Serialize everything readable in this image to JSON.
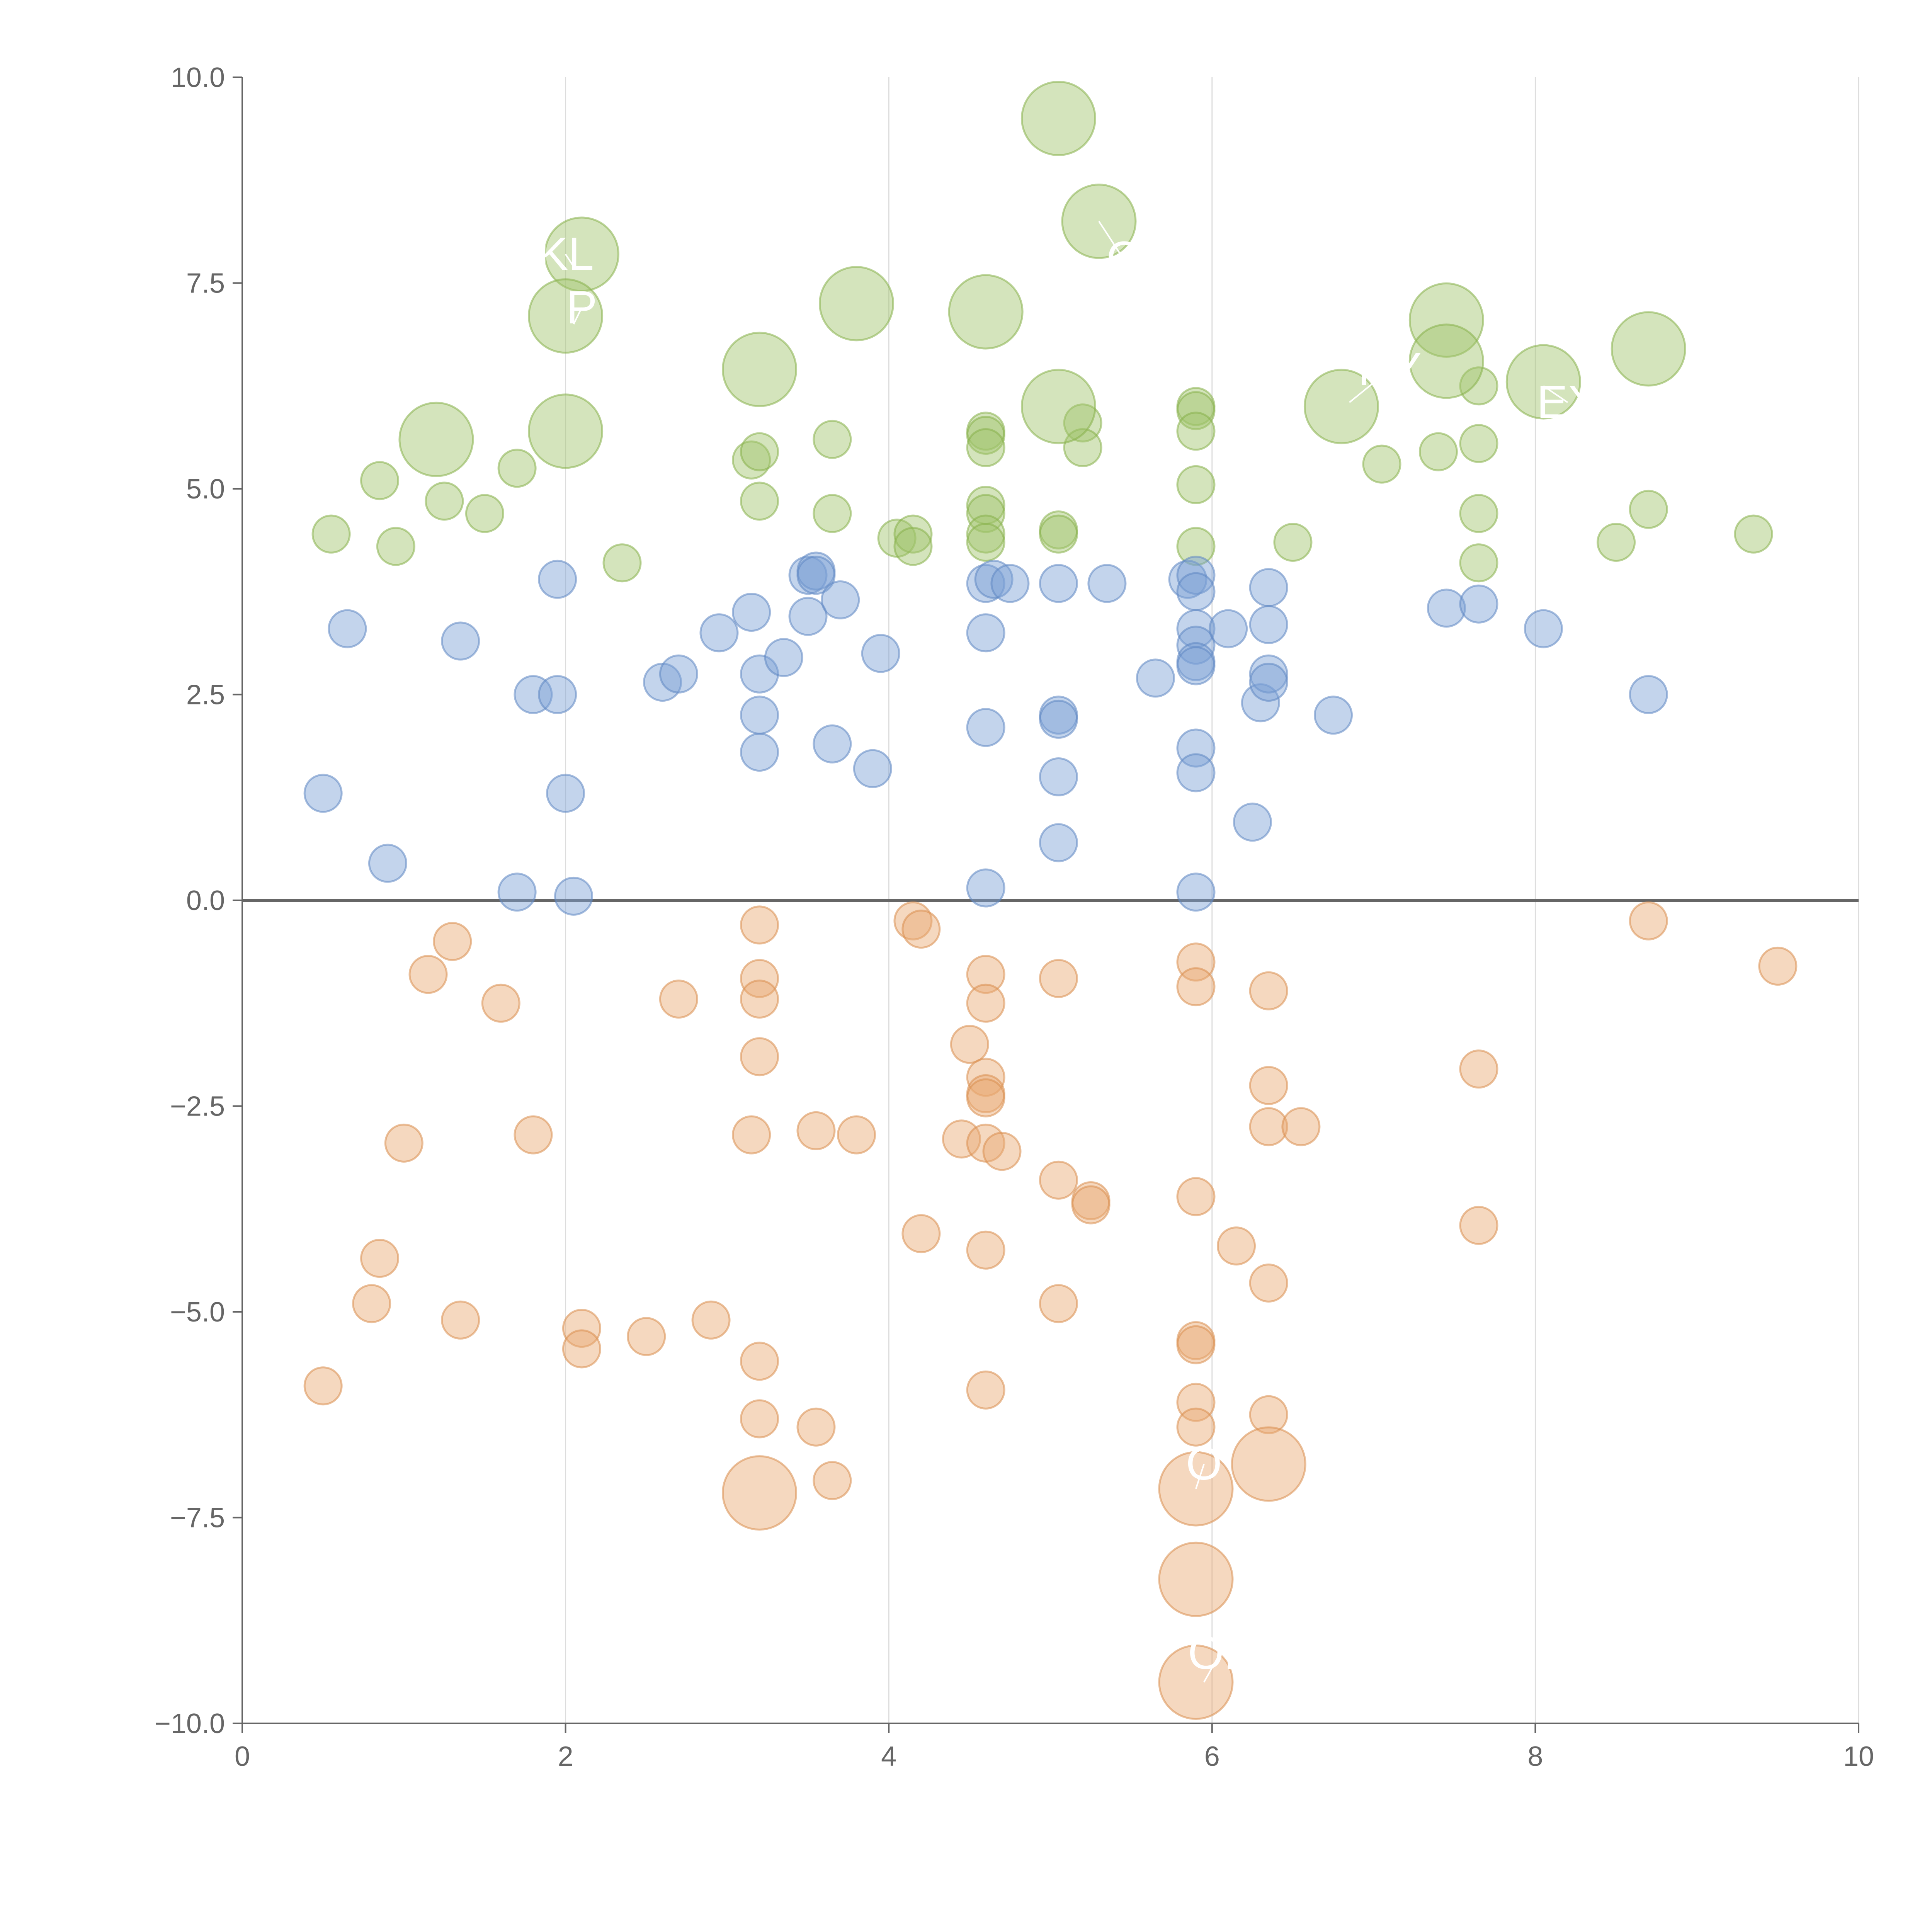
{
  "chart_data": {
    "type": "scatter",
    "title": "",
    "xlabel": "",
    "ylabel": "",
    "xlim": [
      0,
      10
    ],
    "ylim": [
      -10,
      10
    ],
    "x_ticks": [
      0,
      2,
      4,
      6,
      8,
      10
    ],
    "x_tick_labels": [
      "0",
      "2",
      "4",
      "6",
      "8",
      "10"
    ],
    "y_ticks": [
      10,
      7.5,
      5,
      2.5,
      0,
      -2.5,
      -5,
      -7.5,
      -10
    ],
    "y_tick_labels": [
      "10.0",
      "7.5",
      "5.0",
      "2.5",
      "0.0",
      "−2.5",
      "−5.0",
      "−7.5",
      "−10.0"
    ],
    "vertical_grid": true,
    "zero_line": true,
    "series": [
      {
        "name": "green",
        "color": "#9fc46a",
        "stroke": "#86b04a",
        "points": [
          [
            5.05,
            9.5,
            3
          ],
          [
            5.3,
            8.25,
            3
          ],
          [
            2.1,
            7.85,
            3
          ],
          [
            2.0,
            7.1,
            3
          ],
          [
            3.8,
            7.25,
            3
          ],
          [
            4.6,
            7.15,
            3
          ],
          [
            7.45,
            7.05,
            3
          ],
          [
            8.7,
            6.7,
            3
          ],
          [
            3.2,
            6.45,
            3
          ],
          [
            7.45,
            6.55,
            3
          ],
          [
            8.05,
            6.3,
            3
          ],
          [
            6.8,
            6.0,
            3
          ],
          [
            5.05,
            6.0,
            3
          ],
          [
            2.0,
            5.7,
            3
          ],
          [
            1.2,
            5.6,
            3
          ],
          [
            0.55,
            4.45,
            1
          ],
          [
            0.85,
            5.1,
            1
          ],
          [
            0.95,
            4.3,
            1
          ],
          [
            1.25,
            4.85,
            1
          ],
          [
            1.5,
            4.7,
            1
          ],
          [
            1.7,
            5.25,
            1
          ],
          [
            2.35,
            4.1,
            1
          ],
          [
            3.15,
            5.35,
            1
          ],
          [
            3.2,
            5.45,
            1
          ],
          [
            3.2,
            4.85,
            1
          ],
          [
            3.65,
            5.6,
            1
          ],
          [
            3.65,
            4.7,
            1
          ],
          [
            4.05,
            4.4,
            1
          ],
          [
            4.15,
            4.45,
            1
          ],
          [
            4.15,
            4.3,
            1
          ],
          [
            4.6,
            5.7,
            1
          ],
          [
            4.6,
            5.65,
            1
          ],
          [
            4.6,
            5.5,
            1
          ],
          [
            4.6,
            4.8,
            1
          ],
          [
            4.6,
            4.7,
            1
          ],
          [
            4.6,
            4.45,
            1
          ],
          [
            4.6,
            4.35,
            1
          ],
          [
            5.05,
            4.5,
            1
          ],
          [
            5.05,
            4.45,
            1
          ],
          [
            5.2,
            5.8,
            1
          ],
          [
            5.2,
            5.5,
            1
          ],
          [
            5.9,
            6.0,
            1
          ],
          [
            5.9,
            5.95,
            1
          ],
          [
            5.9,
            5.7,
            1
          ],
          [
            5.9,
            5.05,
            1
          ],
          [
            5.9,
            4.3,
            1
          ],
          [
            6.5,
            4.35,
            1
          ],
          [
            7.05,
            5.3,
            1
          ],
          [
            7.4,
            5.45,
            1
          ],
          [
            7.65,
            6.25,
            1
          ],
          [
            7.65,
            5.55,
            1
          ],
          [
            7.65,
            4.7,
            1
          ],
          [
            7.65,
            4.1,
            1
          ],
          [
            8.5,
            4.35,
            1
          ],
          [
            8.7,
            4.75,
            1
          ],
          [
            9.35,
            4.45,
            1
          ]
        ]
      },
      {
        "name": "blue",
        "color": "#7a9fd4",
        "stroke": "#5f86c2",
        "points": [
          [
            0.5,
            1.3,
            1
          ],
          [
            0.65,
            3.3,
            1
          ],
          [
            0.9,
            0.45,
            1
          ],
          [
            1.35,
            3.15,
            1
          ],
          [
            1.7,
            0.1,
            1
          ],
          [
            1.8,
            2.5,
            1
          ],
          [
            1.95,
            3.9,
            1
          ],
          [
            1.95,
            2.5,
            1
          ],
          [
            2.0,
            1.3,
            1
          ],
          [
            2.05,
            0.05,
            1
          ],
          [
            2.6,
            2.65,
            1
          ],
          [
            2.7,
            2.75,
            1
          ],
          [
            2.95,
            3.25,
            1
          ],
          [
            3.15,
            3.5,
            1
          ],
          [
            3.2,
            2.75,
            1
          ],
          [
            3.2,
            2.25,
            1
          ],
          [
            3.2,
            1.8,
            1
          ],
          [
            3.35,
            2.95,
            1
          ],
          [
            3.5,
            3.95,
            1
          ],
          [
            3.5,
            3.45,
            1
          ],
          [
            3.55,
            4.0,
            1
          ],
          [
            3.55,
            3.95,
            1
          ],
          [
            3.65,
            1.9,
            1
          ],
          [
            3.7,
            3.65,
            1
          ],
          [
            3.9,
            1.6,
            1
          ],
          [
            3.95,
            3.0,
            1
          ],
          [
            4.6,
            3.85,
            1
          ],
          [
            4.6,
            3.25,
            1
          ],
          [
            4.6,
            2.1,
            1
          ],
          [
            4.6,
            0.15,
            1
          ],
          [
            4.65,
            3.9,
            1
          ],
          [
            4.75,
            3.85,
            1
          ],
          [
            5.05,
            3.85,
            1
          ],
          [
            5.05,
            2.25,
            1
          ],
          [
            5.05,
            2.2,
            1
          ],
          [
            5.05,
            1.5,
            1
          ],
          [
            5.05,
            0.7,
            1
          ],
          [
            5.35,
            3.85,
            1
          ],
          [
            5.65,
            2.7,
            1
          ],
          [
            5.85,
            3.9,
            1
          ],
          [
            5.9,
            3.95,
            1
          ],
          [
            5.9,
            3.75,
            1
          ],
          [
            5.9,
            3.3,
            1
          ],
          [
            5.9,
            3.1,
            1
          ],
          [
            5.9,
            2.9,
            1
          ],
          [
            5.9,
            2.85,
            1
          ],
          [
            5.9,
            1.85,
            1
          ],
          [
            5.9,
            1.55,
            1
          ],
          [
            5.9,
            0.1,
            1
          ],
          [
            6.1,
            3.3,
            1
          ],
          [
            6.25,
            0.95,
            1
          ],
          [
            6.3,
            2.4,
            1
          ],
          [
            6.35,
            3.8,
            1
          ],
          [
            6.35,
            3.35,
            1
          ],
          [
            6.35,
            2.75,
            1
          ],
          [
            6.35,
            2.65,
            1
          ],
          [
            6.75,
            2.25,
            1
          ],
          [
            7.45,
            3.55,
            1
          ],
          [
            7.65,
            3.6,
            1
          ],
          [
            8.05,
            3.3,
            1
          ],
          [
            8.7,
            2.5,
            1
          ]
        ]
      },
      {
        "name": "orange",
        "color": "#e8a870",
        "stroke": "#d98e4e",
        "points": [
          [
            3.2,
            -7.2,
            3
          ],
          [
            5.9,
            -7.15,
            3
          ],
          [
            6.35,
            -6.85,
            3
          ],
          [
            5.9,
            -8.25,
            3
          ],
          [
            5.9,
            -9.5,
            3
          ],
          [
            0.5,
            -5.9,
            1
          ],
          [
            0.8,
            -4.9,
            1
          ],
          [
            0.85,
            -4.35,
            1
          ],
          [
            1.0,
            -2.95,
            1
          ],
          [
            1.15,
            -0.9,
            1
          ],
          [
            1.3,
            -0.5,
            1
          ],
          [
            1.35,
            -5.1,
            1
          ],
          [
            1.6,
            -1.25,
            1
          ],
          [
            1.8,
            -2.85,
            1
          ],
          [
            2.1,
            -5.2,
            1
          ],
          [
            2.1,
            -5.45,
            1
          ],
          [
            2.5,
            -5.3,
            1
          ],
          [
            2.7,
            -1.2,
            1
          ],
          [
            2.9,
            -5.1,
            1
          ],
          [
            3.15,
            -2.85,
            1
          ],
          [
            3.2,
            -0.3,
            1
          ],
          [
            3.2,
            -0.95,
            1
          ],
          [
            3.2,
            -1.2,
            1
          ],
          [
            3.2,
            -1.9,
            1
          ],
          [
            3.2,
            -5.6,
            1
          ],
          [
            3.2,
            -6.3,
            1
          ],
          [
            3.55,
            -2.8,
            1
          ],
          [
            3.55,
            -6.4,
            1
          ],
          [
            3.65,
            -7.05,
            1
          ],
          [
            3.8,
            -2.85,
            1
          ],
          [
            4.15,
            -0.25,
            1
          ],
          [
            4.2,
            -0.35,
            1
          ],
          [
            4.2,
            -4.05,
            1
          ],
          [
            4.5,
            -1.75,
            1
          ],
          [
            4.45,
            -2.9,
            1
          ],
          [
            4.6,
            -0.9,
            1
          ],
          [
            4.6,
            -1.25,
            1
          ],
          [
            4.6,
            -2.15,
            1
          ],
          [
            4.6,
            -2.35,
            1
          ],
          [
            4.6,
            -2.4,
            1
          ],
          [
            4.6,
            -2.95,
            1
          ],
          [
            4.6,
            -4.25,
            1
          ],
          [
            4.6,
            -5.95,
            1
          ],
          [
            4.7,
            -3.05,
            1
          ],
          [
            5.05,
            -0.95,
            1
          ],
          [
            5.05,
            -3.4,
            1
          ],
          [
            5.05,
            -4.9,
            1
          ],
          [
            5.25,
            -3.65,
            1
          ],
          [
            5.25,
            -3.7,
            1
          ],
          [
            5.9,
            -0.75,
            1
          ],
          [
            5.9,
            -1.05,
            1
          ],
          [
            5.9,
            -3.6,
            1
          ],
          [
            5.9,
            -5.35,
            1
          ],
          [
            5.9,
            -5.4,
            1
          ],
          [
            5.9,
            -6.1,
            1
          ],
          [
            5.9,
            -6.4,
            1
          ],
          [
            6.15,
            -4.2,
            1
          ],
          [
            6.35,
            -1.1,
            1
          ],
          [
            6.35,
            -2.25,
            1
          ],
          [
            6.35,
            -2.75,
            1
          ],
          [
            6.35,
            -4.65,
            1
          ],
          [
            6.35,
            -6.25,
            1
          ],
          [
            6.55,
            -2.75,
            1
          ],
          [
            7.65,
            -2.05,
            1
          ],
          [
            7.65,
            -3.95,
            1
          ],
          [
            8.7,
            -0.25,
            1
          ],
          [
            9.5,
            -0.8,
            1
          ]
        ]
      }
    ],
    "annotations": [
      {
        "text": "KL",
        "x": 2.0,
        "y": 7.85,
        "line_to": [
          2.05,
          7.7
        ]
      },
      {
        "text": "P",
        "x": 2.1,
        "y": 7.2,
        "line_to": [
          2.05,
          7.0
        ]
      },
      {
        "text": "EX",
        "x": 8.2,
        "y": 6.05,
        "line_to": [
          8.05,
          6.25
        ]
      },
      {
        "text": "RY",
        "x": 7.1,
        "y": 6.45,
        "line_to": [
          6.85,
          6.05
        ]
      },
      {
        "text": "C",
        "x": 5.45,
        "y": 7.8,
        "line_to": [
          5.3,
          8.25
        ]
      },
      {
        "text": "O",
        "x": 5.95,
        "y": -6.85,
        "line_to": [
          5.9,
          -7.15
        ]
      },
      {
        "text": "OF",
        "x": 6.05,
        "y": -9.15,
        "line_to": [
          5.95,
          -9.5
        ]
      }
    ]
  }
}
